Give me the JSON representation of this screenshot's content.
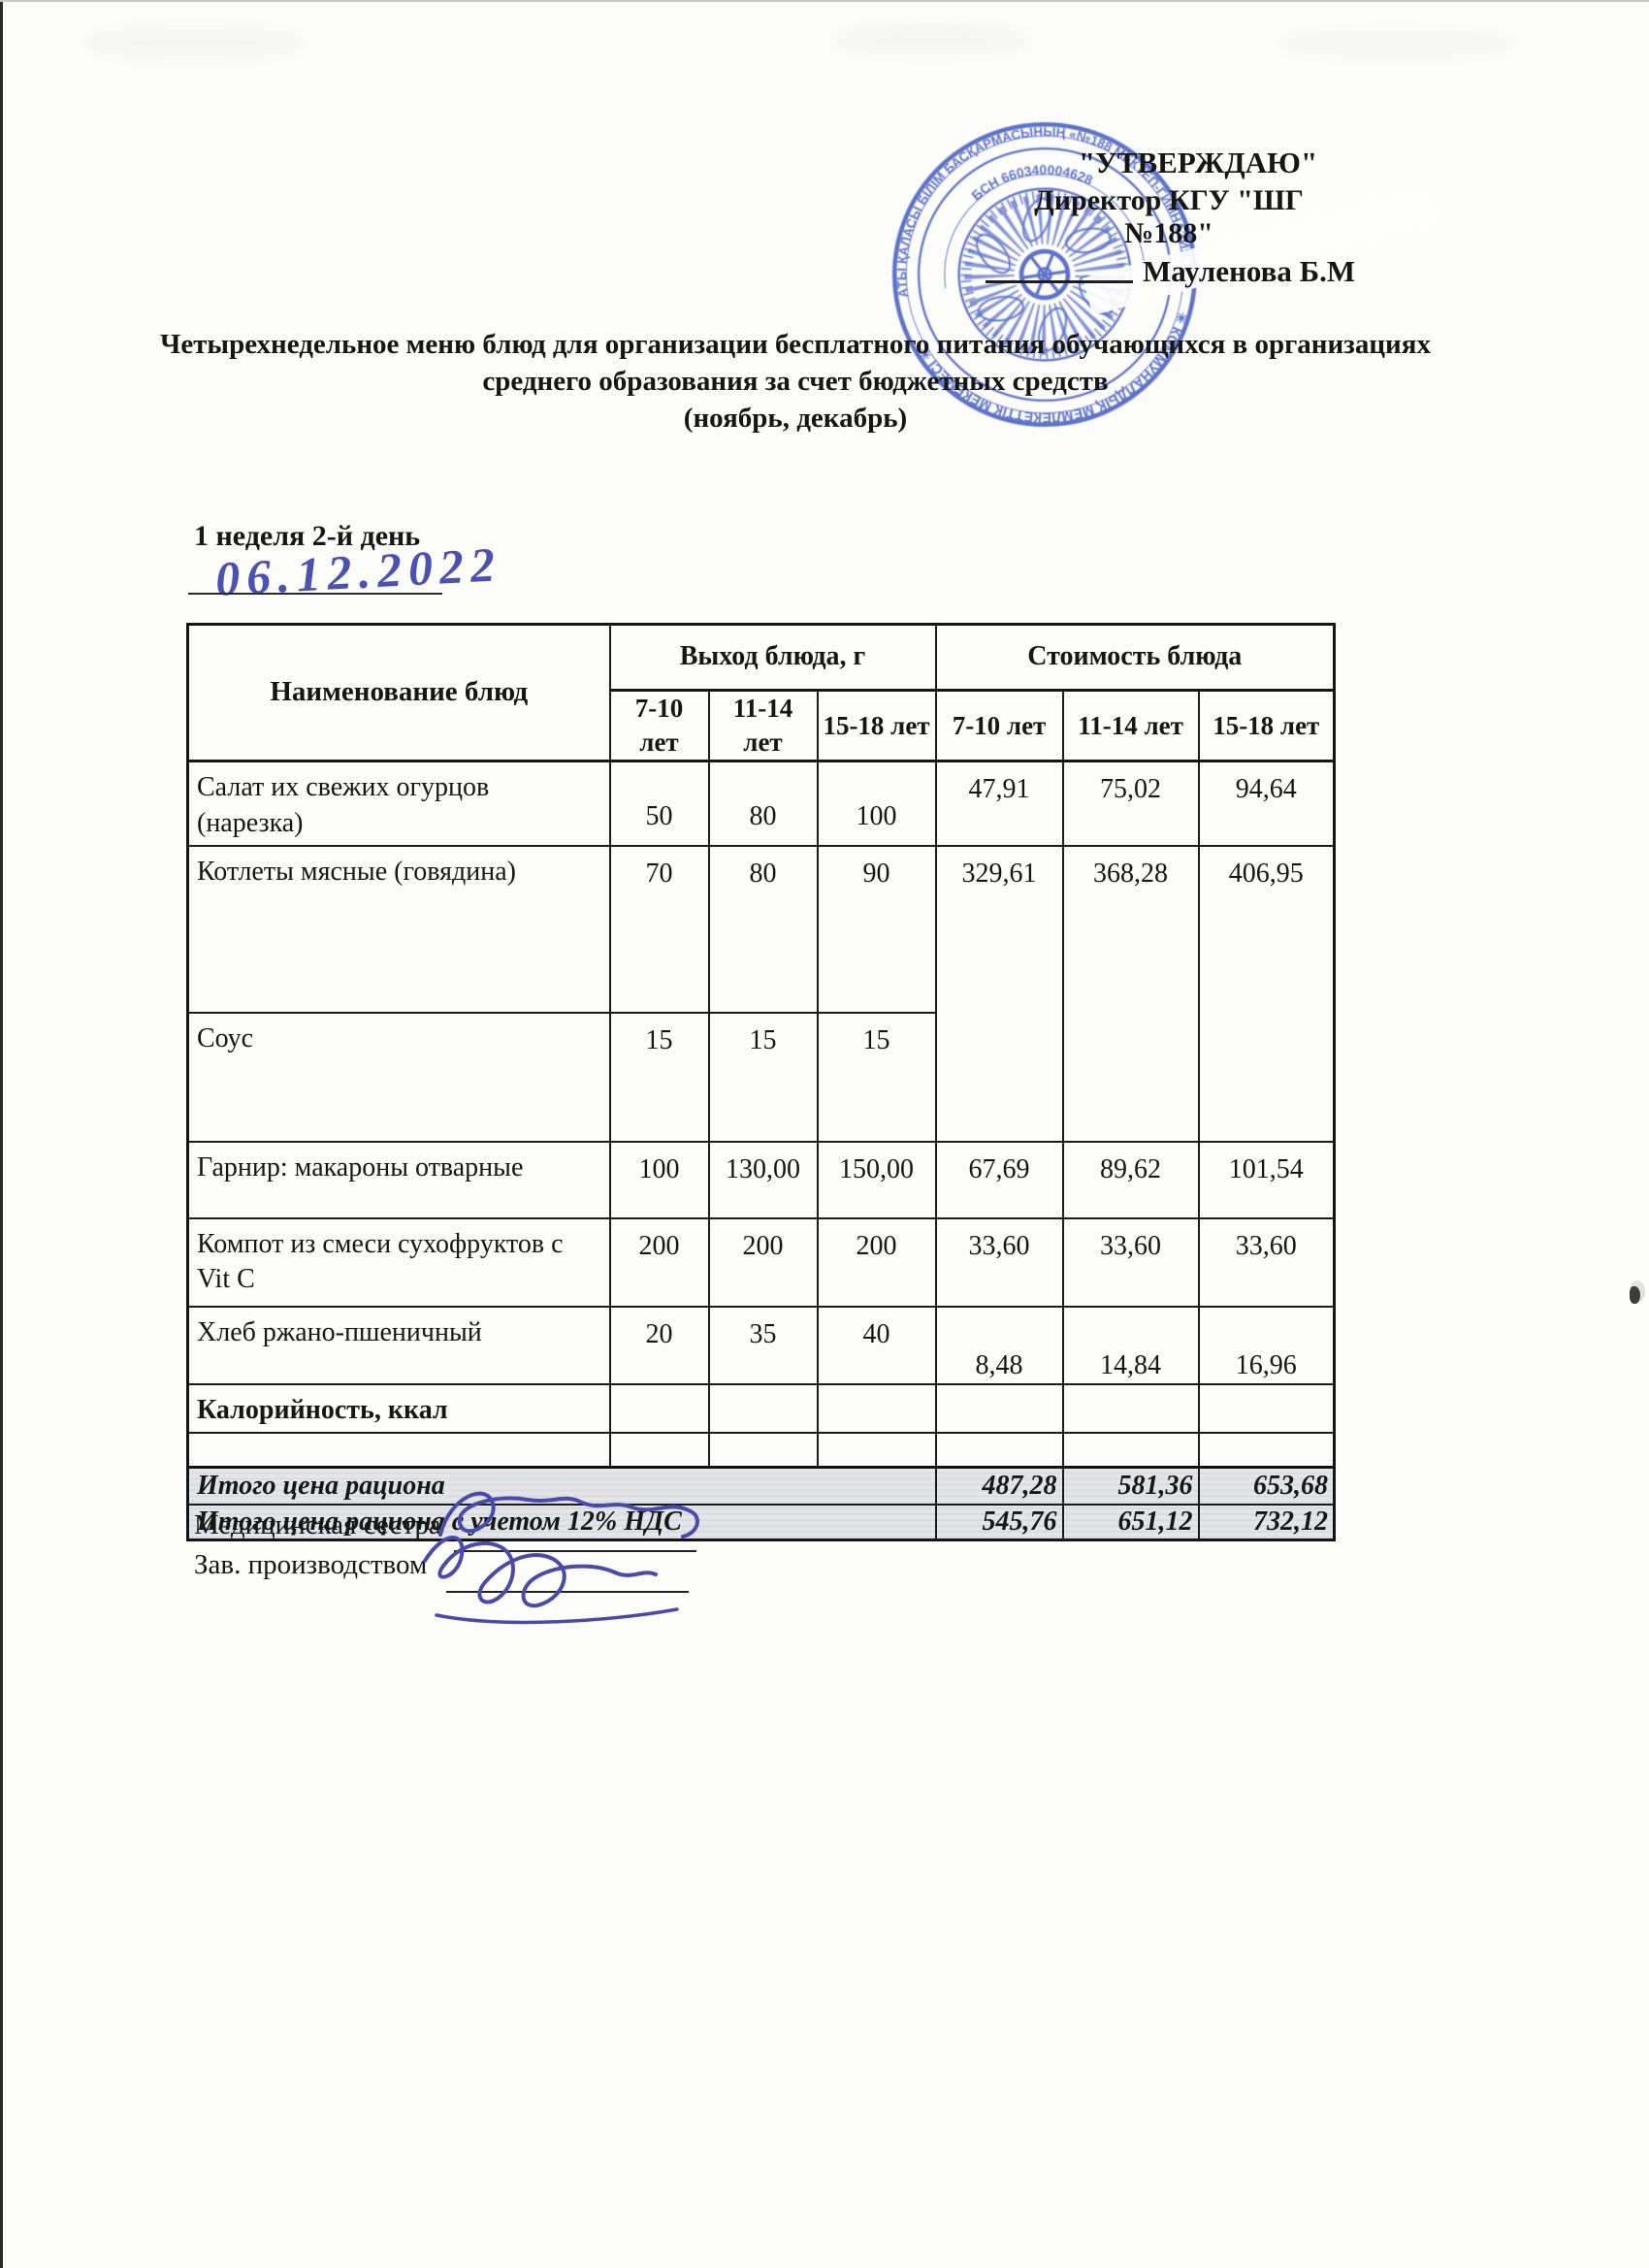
{
  "approval": {
    "approve_label": "\"УТВЕРЖДАЮ\"",
    "director_line": "Директор КГУ \"ШГ №188\"",
    "director_name": "Мауленова Б.М"
  },
  "title": {
    "line1": "Четырехнедельное меню блюд для организации бесплатного питания обучающихся в организациях",
    "line2": "среднего образования за счет бюджетных средств",
    "line3": "(ноябрь, декабрь)"
  },
  "week_heading": "1 неделя 2-й день",
  "handwritten_date": "06.12.2022",
  "stamp": {
    "ring_top": "АЛМАТЫ ҚАЛАСЫ БІЛІМ БАСҚАРМАСЫНЫҢ «№188 МЕКТЕП-ГИМНАЗИЯСЫ»",
    "ring_bottom": "✳ КОММУНАЛДЫҚ МЕМЛЕКЕТТІК МЕКЕМЕСІ ✳",
    "bin_text": "БСН 660340004628",
    "ink_color": "#3d56bf"
  },
  "table": {
    "name_header": "Наименование блюд",
    "out_group": "Выход блюда, г",
    "cost_group": "Стоимость блюда",
    "age_headers": [
      "7-10 лет",
      "11-14 лет",
      "15-18 лет"
    ],
    "rows": [
      {
        "name": "Салат их свежих огурцов (нарезка)",
        "out": [
          "50",
          "80",
          "100"
        ],
        "cost": [
          "47,91",
          "75,02",
          "94,64"
        ]
      },
      {
        "name": "Котлеты мясные (говядина)",
        "out": [
          "70",
          "80",
          "90"
        ],
        "cost": [
          "329,61",
          "368,28",
          "406,95"
        ],
        "cost_rowspan": 2
      },
      {
        "name": "Соус",
        "out": [
          "15",
          "15",
          "15"
        ],
        "cost": null
      },
      {
        "name": "Гарнир: макароны отварные",
        "out": [
          "100",
          "130,00",
          "150,00"
        ],
        "cost": [
          "67,69",
          "89,62",
          "101,54"
        ]
      },
      {
        "name": "Компот из смеси сухофруктов с Vit C",
        "out": [
          "200",
          "200",
          "200"
        ],
        "cost": [
          "33,60",
          "33,60",
          "33,60"
        ]
      },
      {
        "name": "Хлеб ржано-пшеничный",
        "out": [
          "20",
          "35",
          "40"
        ],
        "cost": [
          "8,48",
          "14,84",
          "16,96"
        ]
      },
      {
        "name": "Калорийность, ккал",
        "out": [
          "",
          "",
          ""
        ],
        "cost": [
          "",
          "",
          ""
        ],
        "bold": true
      },
      {
        "name": "",
        "out": [
          "",
          "",
          ""
        ],
        "cost": [
          "",
          "",
          ""
        ]
      }
    ],
    "totals": [
      {
        "label": "Итого цена рациона",
        "values": [
          "487,28",
          "581,36",
          "653,68"
        ]
      },
      {
        "label": "Итого цена рациона с учетом 12% НДС",
        "values": [
          "545,76",
          "651,12",
          "732,12"
        ]
      }
    ]
  },
  "signatures": {
    "label1": "Медицинская сестра",
    "label2": "Зав. производством"
  }
}
